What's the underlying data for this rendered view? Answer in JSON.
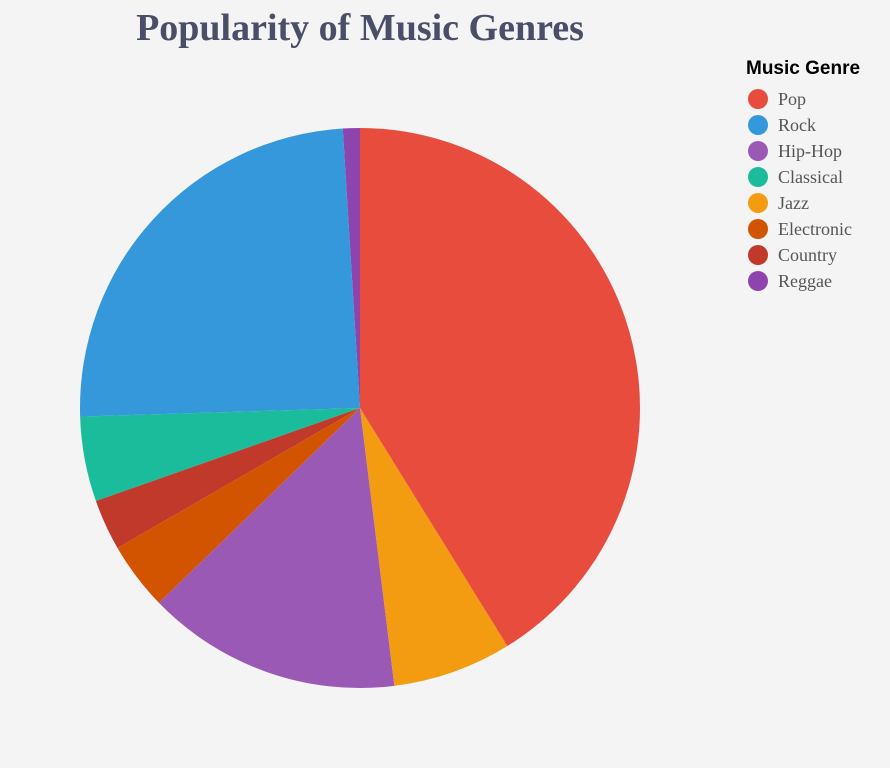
{
  "chart_data": {
    "type": "pie",
    "title": "Popularity of Music Genres",
    "legend_title": "Music Genre",
    "legend_position": "right",
    "categories": [
      "Pop",
      "Rock",
      "Hip-Hop",
      "Classical",
      "Jazz",
      "Electronic",
      "Country",
      "Reggae"
    ],
    "values": [
      42,
      25,
      15,
      5,
      7,
      4,
      3,
      1
    ],
    "colors": [
      "#e74c3c",
      "#3498db",
      "#9b59b6",
      "#1abc9c",
      "#f39c12",
      "#d35400",
      "#c0392b",
      "#8e44ad"
    ],
    "draw_order": [
      "Reggae",
      "Rock",
      "Classical",
      "Country",
      "Electronic",
      "Hip-Hop",
      "Jazz",
      "Pop"
    ]
  }
}
